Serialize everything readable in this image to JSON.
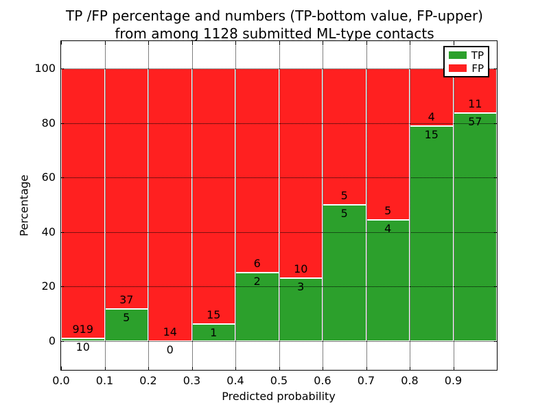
{
  "chart_data": {
    "type": "bar",
    "stacked": true,
    "title_line1": "TP /FP percentage and numbers (TP-bottom value, FP-upper)",
    "title_line2": "from among 1128 submitted ML-type contacts",
    "xlabel": "Predicted probability",
    "ylabel": "Percentage",
    "total_contacts": 1128,
    "bin_edges": [
      0.0,
      0.1,
      0.2,
      0.3,
      0.4,
      0.5,
      0.6,
      0.7,
      0.8,
      0.9,
      1.0
    ],
    "x_tick_labels": [
      "0.0",
      "0.1",
      "0.2",
      "0.3",
      "0.4",
      "0.5",
      "0.6",
      "0.7",
      "0.8",
      "0.9"
    ],
    "y_tick_values": [
      0,
      20,
      40,
      60,
      80,
      100
    ],
    "y_tick_labels": [
      "0",
      "20",
      "40",
      "60",
      "80",
      "100"
    ],
    "ylim": [
      -10.6,
      110.1
    ],
    "grid_style": "dotted",
    "grid_color": "#000000",
    "bar_edge_color": "#ffffff",
    "series": [
      {
        "name": "TP",
        "color": "#2ca02c",
        "counts": [
          10,
          5,
          0,
          1,
          2,
          3,
          5,
          4,
          15,
          57
        ],
        "percent": [
          1.08,
          11.9,
          0.0,
          6.25,
          25.0,
          23.08,
          50.0,
          44.44,
          78.95,
          83.82
        ]
      },
      {
        "name": "FP",
        "color": "#ff2020",
        "counts": [
          919,
          37,
          14,
          15,
          6,
          10,
          5,
          5,
          4,
          11
        ],
        "percent": [
          98.92,
          88.1,
          100.0,
          93.75,
          75.0,
          76.92,
          50.0,
          55.56,
          21.05,
          16.18
        ]
      }
    ],
    "legend_position": "upper right"
  }
}
